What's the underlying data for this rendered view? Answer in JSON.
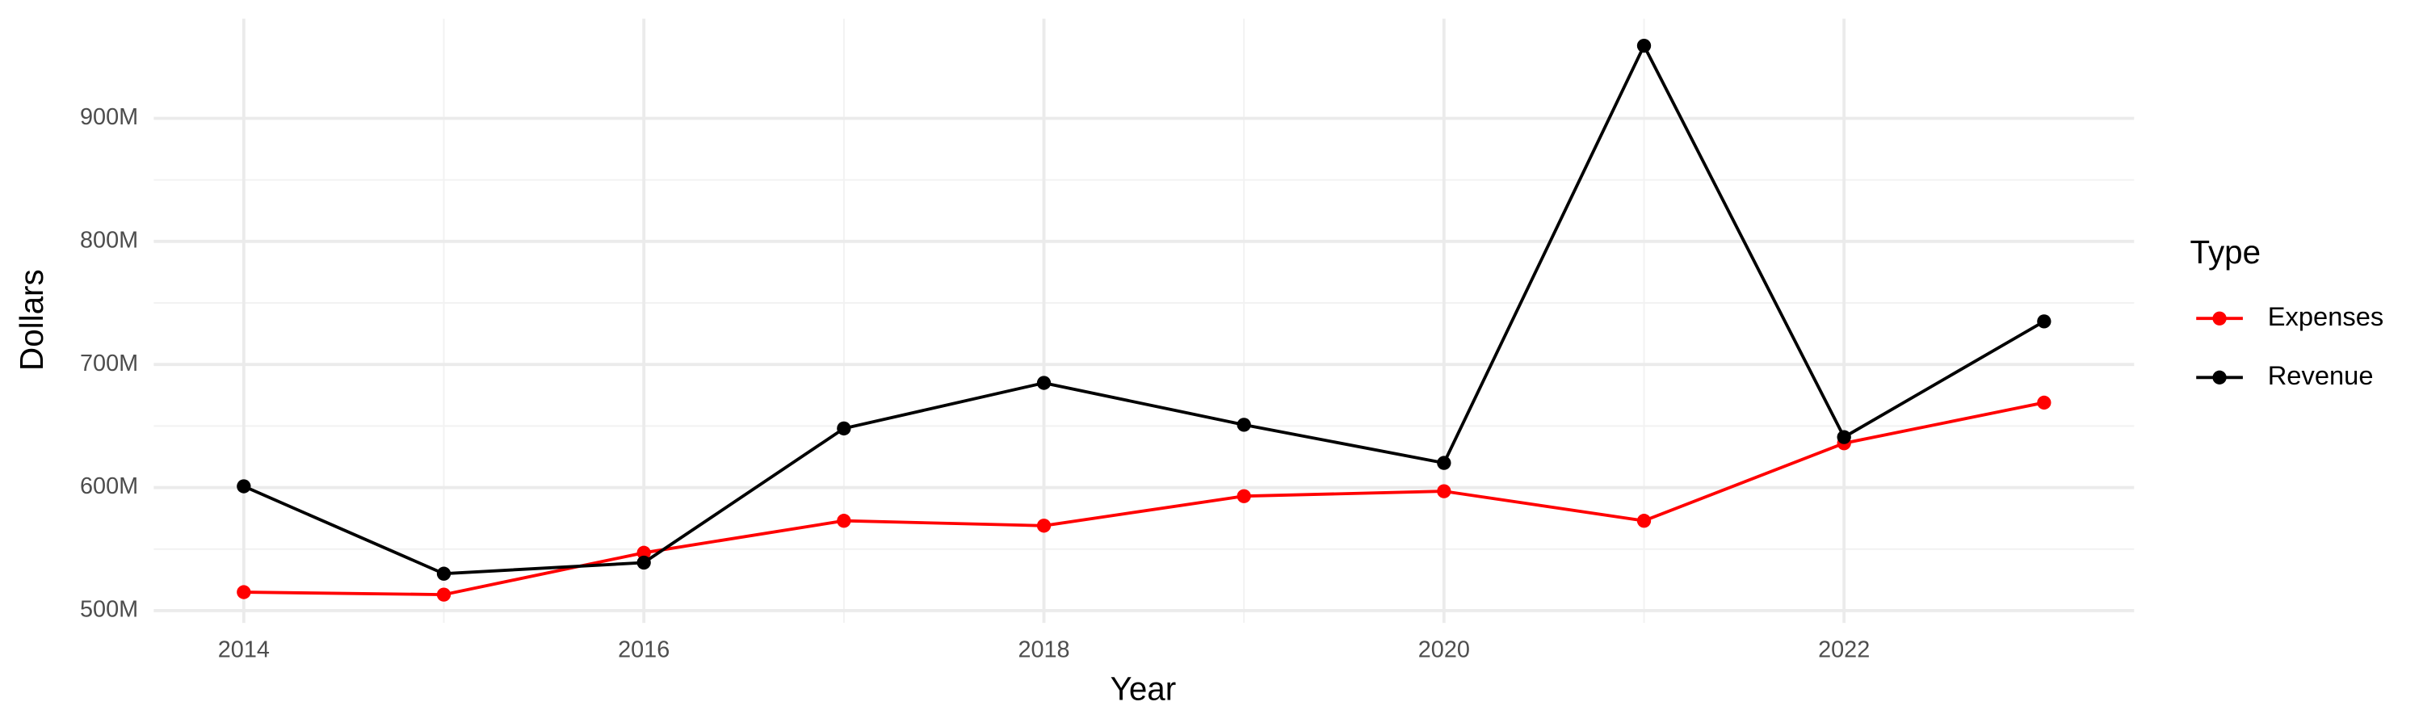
{
  "chart_data": {
    "type": "line",
    "x_label": "Year",
    "y_label": "Dollars",
    "legend_title": "Type",
    "x": [
      2014,
      2015,
      2016,
      2017,
      2018,
      2019,
      2020,
      2021,
      2022,
      2023
    ],
    "series": [
      {
        "name": "Expenses",
        "color": "#ff0000",
        "values": [
          515000000,
          513000000,
          547000000,
          573000000,
          569000000,
          593000000,
          597000000,
          573000000,
          636000000,
          669000000
        ]
      },
      {
        "name": "Revenue",
        "color": "#000000",
        "values": [
          601000000,
          530000000,
          539000000,
          648000000,
          685000000,
          651000000,
          620000000,
          959000000,
          641000000,
          735000000
        ]
      }
    ],
    "xlim": [
      2013.55,
      2023.45
    ],
    "xticks": [
      2014,
      2016,
      2018,
      2020,
      2022
    ],
    "ylim": [
      490000000,
      981000000
    ],
    "yticks": [
      {
        "value": 500000000,
        "label": "500M"
      },
      {
        "value": 600000000,
        "label": "600M"
      },
      {
        "value": 700000000,
        "label": "700M"
      },
      {
        "value": 800000000,
        "label": "800M"
      },
      {
        "value": 900000000,
        "label": "900M"
      }
    ],
    "grid": true,
    "legend": "right"
  }
}
